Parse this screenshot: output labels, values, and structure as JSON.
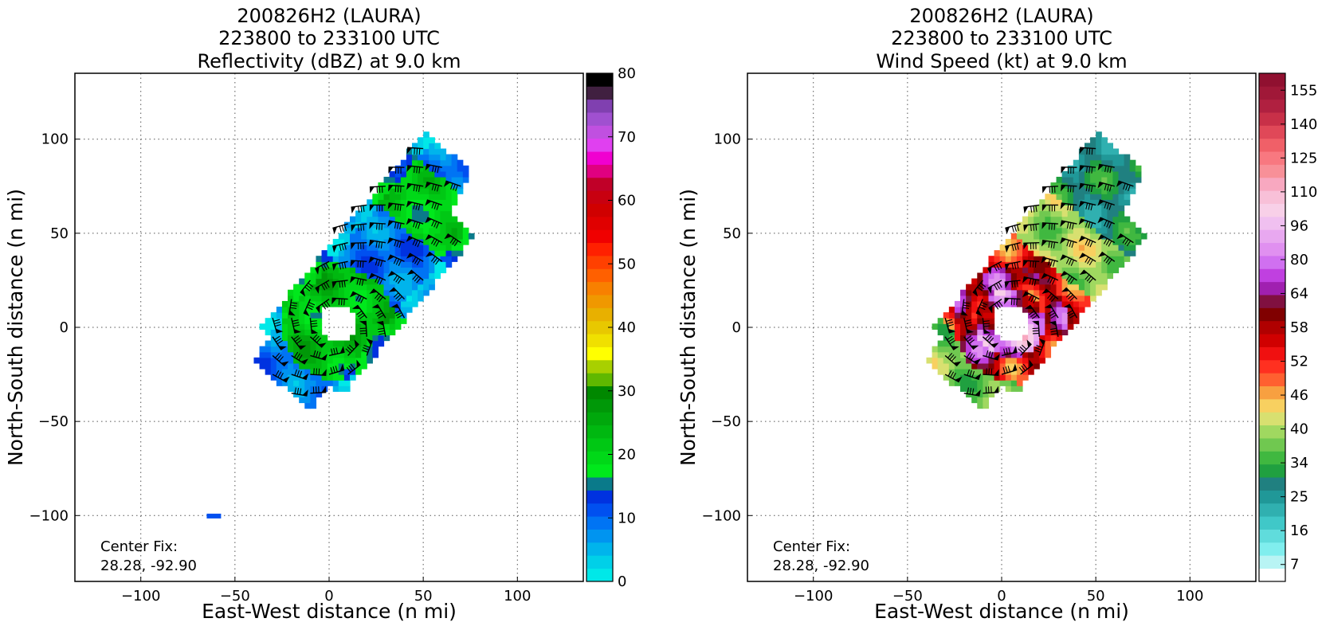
{
  "chart_data": [
    {
      "type": "heatmap",
      "title_lines": [
        "200826H2 (LAURA)",
        "223800 to 233100 UTC",
        "Reflectivity (dBZ) at 9.0 km"
      ],
      "xlabel": "East-West distance (n mi)",
      "ylabel": "North-South distance (n mi)",
      "xlim": [
        -135,
        135
      ],
      "ylim": [
        -135,
        135
      ],
      "xticks": [
        -100,
        -50,
        0,
        50,
        100
      ],
      "yticks": [
        -100,
        -50,
        0,
        50,
        100
      ],
      "grid": true,
      "center_fix_label": "Center Fix:",
      "center_fix_value": "28.28, -92.90",
      "colorbar": {
        "min": 0,
        "max": 80,
        "ticks": [
          0,
          10,
          20,
          30,
          40,
          50,
          60,
          70,
          80
        ],
        "colors": [
          "#00e8e8",
          "#00d0e8",
          "#00b4ec",
          "#0094f0",
          "#0074f4",
          "#0050f0",
          "#0032e0",
          "#0a7a8a",
          "#00e81c",
          "#00d818",
          "#00c814",
          "#00b810",
          "#00a80c",
          "#009808",
          "#008800",
          "#60b800",
          "#a8d000",
          "#ffff00",
          "#f0e000",
          "#e8c800",
          "#e8b000",
          "#f09800",
          "#f88000",
          "#ff6000",
          "#ff4000",
          "#ff2000",
          "#f00000",
          "#e00000",
          "#d00000",
          "#c80010",
          "#c00028",
          "#e00080",
          "#f000d0",
          "#e040f0",
          "#c050e0",
          "#a050d0",
          "#8040b0",
          "#402040",
          "#000000"
        ]
      },
      "field": {
        "eye_radius": 10,
        "low_value_patch": [
          -62,
          -100
        ]
      }
    },
    {
      "type": "heatmap",
      "title_lines": [
        "200826H2 (LAURA)",
        "223800 to 233100 UTC",
        "Wind Speed (kt) at 9.0 km"
      ],
      "xlabel": "East-West distance (n mi)",
      "ylabel": "North-South distance (n mi)",
      "xlim": [
        -135,
        135
      ],
      "ylim": [
        -135,
        135
      ],
      "xticks": [
        -100,
        -50,
        0,
        50,
        100
      ],
      "yticks": [
        -100,
        -50,
        0,
        50,
        100
      ],
      "grid": true,
      "center_fix_label": "Center Fix:",
      "center_fix_value": "28.28, -92.90",
      "colorbar": {
        "ticks": [
          "7",
          "16",
          "25",
          "34",
          "40",
          "46",
          "52",
          "58",
          "64",
          "80",
          "96",
          "110",
          "125",
          "140",
          "155"
        ],
        "colors": [
          "#ffffff",
          "#b8f4f4",
          "#80eeee",
          "#60dcdc",
          "#40c8c8",
          "#30b0b0",
          "#209898",
          "#208080",
          "#20a040",
          "#40b840",
          "#70c850",
          "#a0d860",
          "#d8e070",
          "#f8d060",
          "#f8a040",
          "#ff6030",
          "#ff3020",
          "#f01010",
          "#d00000",
          "#b00000",
          "#800000",
          "#801040",
          "#a020b0",
          "#c040e0",
          "#d070f0",
          "#e090f0",
          "#e8a8f0",
          "#f0c0f0",
          "#f8d0e8",
          "#f8c0d8",
          "#f8a8c0",
          "#f89098",
          "#f87880",
          "#f06068",
          "#e04858",
          "#c83048",
          "#b02040",
          "#a01838",
          "#901030"
        ]
      },
      "field": {
        "eye_radius": 10
      }
    }
  ]
}
